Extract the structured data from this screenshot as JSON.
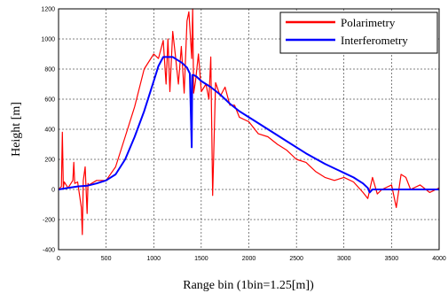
{
  "chart_data": {
    "type": "line",
    "title": "",
    "xlabel": "Range bin (1bin=1.25[m])",
    "ylabel": "Height [m]",
    "xlim": [
      0,
      4000
    ],
    "ylim": [
      -400,
      1200
    ],
    "xticks": [
      0,
      500,
      1000,
      1500,
      2000,
      2500,
      3000,
      3500,
      4000
    ],
    "yticks": [
      -400,
      -200,
      0,
      200,
      400,
      600,
      800,
      1000,
      1200
    ],
    "grid": true,
    "grid_style": "dashed",
    "legend_position": "top-right",
    "series": [
      {
        "name": "Polarimetry",
        "color": "#ff0000",
        "x": [
          0,
          30,
          40,
          50,
          60,
          80,
          100,
          150,
          160,
          170,
          200,
          240,
          250,
          260,
          280,
          300,
          310,
          320,
          400,
          500,
          600,
          700,
          800,
          900,
          1000,
          1050,
          1100,
          1130,
          1150,
          1170,
          1200,
          1230,
          1260,
          1290,
          1320,
          1350,
          1370,
          1385,
          1400,
          1410,
          1420,
          1440,
          1470,
          1500,
          1550,
          1580,
          1600,
          1620,
          1650,
          1700,
          1750,
          1800,
          1850,
          1900,
          2000,
          2100,
          2200,
          2300,
          2400,
          2500,
          2600,
          2700,
          2800,
          2900,
          3000,
          3100,
          3200,
          3250,
          3300,
          3350,
          3400,
          3500,
          3550,
          3600,
          3650,
          3700,
          3800,
          3900,
          4000
        ],
        "y": [
          0,
          20,
          380,
          10,
          50,
          30,
          10,
          60,
          180,
          40,
          50,
          -120,
          -300,
          60,
          150,
          -160,
          40,
          30,
          60,
          60,
          150,
          350,
          550,
          800,
          900,
          870,
          990,
          700,
          1000,
          650,
          1050,
          880,
          700,
          950,
          640,
          1120,
          1180,
          1030,
          870,
          1200,
          640,
          720,
          900,
          650,
          700,
          600,
          880,
          -40,
          710,
          620,
          680,
          560,
          560,
          480,
          450,
          370,
          350,
          300,
          260,
          200,
          180,
          120,
          80,
          60,
          80,
          50,
          -20,
          -60,
          80,
          -30,
          0,
          30,
          -120,
          100,
          80,
          0,
          30,
          -20,
          10
        ]
      },
      {
        "name": "Interferometry",
        "color": "#0000ff",
        "x": [
          0,
          100,
          200,
          300,
          400,
          500,
          600,
          700,
          800,
          900,
          950,
          1000,
          1050,
          1100,
          1150,
          1200,
          1250,
          1300,
          1350,
          1380,
          1395,
          1400,
          1405,
          1420,
          1450,
          1500,
          1600,
          1700,
          1800,
          1900,
          2000,
          2200,
          2400,
          2600,
          2800,
          3000,
          3100,
          3200,
          3250,
          3270,
          3300,
          3400,
          3600,
          3800,
          4000
        ],
        "y": [
          0,
          10,
          20,
          25,
          40,
          60,
          100,
          200,
          350,
          520,
          620,
          720,
          820,
          880,
          880,
          880,
          860,
          840,
          810,
          770,
          400,
          280,
          760,
          760,
          750,
          720,
          680,
          630,
          570,
          520,
          480,
          400,
          320,
          240,
          170,
          110,
          80,
          40,
          10,
          -20,
          0,
          0,
          0,
          0,
          0
        ]
      }
    ]
  }
}
